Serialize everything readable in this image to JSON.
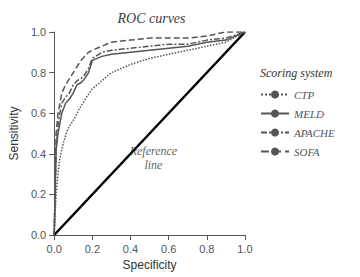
{
  "chart_data": {
    "type": "line",
    "title": "ROC curves",
    "xlabel": "Specificity",
    "ylabel": "Sensitivity",
    "legend_title": "Scoring system",
    "legend": "right",
    "grid": false,
    "xlim": [
      0.0,
      1.0
    ],
    "ylim": [
      0.0,
      1.0
    ],
    "xticks": [
      {
        "value": 0.0,
        "label": "0.0"
      },
      0.2,
      0.4,
      0.6,
      0.8,
      {
        "value": 1.0,
        "label": "1.0"
      }
    ],
    "yticks": [
      {
        "value": 0.0,
        "label": "0.0"
      },
      0.2,
      0.4,
      0.6,
      0.8,
      {
        "value": 1.0,
        "label": "1.0"
      }
    ],
    "series": [
      {
        "name": "CTP",
        "color": "#555555",
        "line_style": "dotted",
        "x": [
          0.0,
          0.01,
          0.02,
          0.03,
          0.05,
          0.07,
          0.09,
          0.11,
          0.13,
          0.15,
          0.17,
          0.2,
          0.25,
          0.3,
          0.4,
          0.5,
          0.6,
          0.7,
          0.8,
          0.9,
          1.0
        ],
        "values": [
          0.0,
          0.2,
          0.3,
          0.38,
          0.46,
          0.52,
          0.55,
          0.58,
          0.62,
          0.65,
          0.68,
          0.72,
          0.76,
          0.8,
          0.84,
          0.87,
          0.89,
          0.91,
          0.93,
          0.95,
          1.0
        ]
      },
      {
        "name": "MELD",
        "color": "#555555",
        "line_style": "solid",
        "x": [
          0.0,
          0.01,
          0.02,
          0.03,
          0.04,
          0.06,
          0.08,
          0.1,
          0.12,
          0.14,
          0.16,
          0.18,
          0.2,
          0.25,
          0.3,
          0.4,
          0.5,
          0.6,
          0.7,
          0.8,
          0.9,
          1.0
        ],
        "values": [
          0.0,
          0.42,
          0.5,
          0.55,
          0.6,
          0.65,
          0.67,
          0.7,
          0.74,
          0.75,
          0.77,
          0.8,
          0.86,
          0.88,
          0.89,
          0.9,
          0.91,
          0.92,
          0.93,
          0.95,
          0.96,
          1.0
        ]
      },
      {
        "name": "APACHE",
        "color": "#555555",
        "line_style": "dashdot",
        "x": [
          0.0,
          0.01,
          0.02,
          0.03,
          0.04,
          0.06,
          0.08,
          0.1,
          0.12,
          0.14,
          0.16,
          0.18,
          0.2,
          0.25,
          0.3,
          0.4,
          0.5,
          0.6,
          0.7,
          0.8,
          0.9,
          1.0
        ],
        "values": [
          0.0,
          0.42,
          0.54,
          0.6,
          0.65,
          0.68,
          0.7,
          0.74,
          0.76,
          0.77,
          0.79,
          0.82,
          0.87,
          0.9,
          0.91,
          0.92,
          0.93,
          0.94,
          0.94,
          0.96,
          0.97,
          1.0
        ]
      },
      {
        "name": "SOFA",
        "color": "#555555",
        "line_style": "dashed",
        "x": [
          0.0,
          0.01,
          0.02,
          0.03,
          0.04,
          0.06,
          0.08,
          0.1,
          0.12,
          0.14,
          0.16,
          0.18,
          0.2,
          0.25,
          0.3,
          0.4,
          0.5,
          0.6,
          0.7,
          0.8,
          0.9,
          1.0
        ],
        "values": [
          0.0,
          0.5,
          0.6,
          0.65,
          0.7,
          0.74,
          0.77,
          0.8,
          0.83,
          0.86,
          0.88,
          0.9,
          0.91,
          0.93,
          0.95,
          0.96,
          0.97,
          0.97,
          0.97,
          0.98,
          1.0,
          1.0
        ]
      }
    ],
    "reference_line": {
      "x": [
        0,
        1
      ],
      "values": [
        0,
        1
      ],
      "color": "#000000"
    },
    "annotations": [
      {
        "text": "Reference\nline",
        "x": 0.52,
        "y": 0.38
      }
    ]
  }
}
